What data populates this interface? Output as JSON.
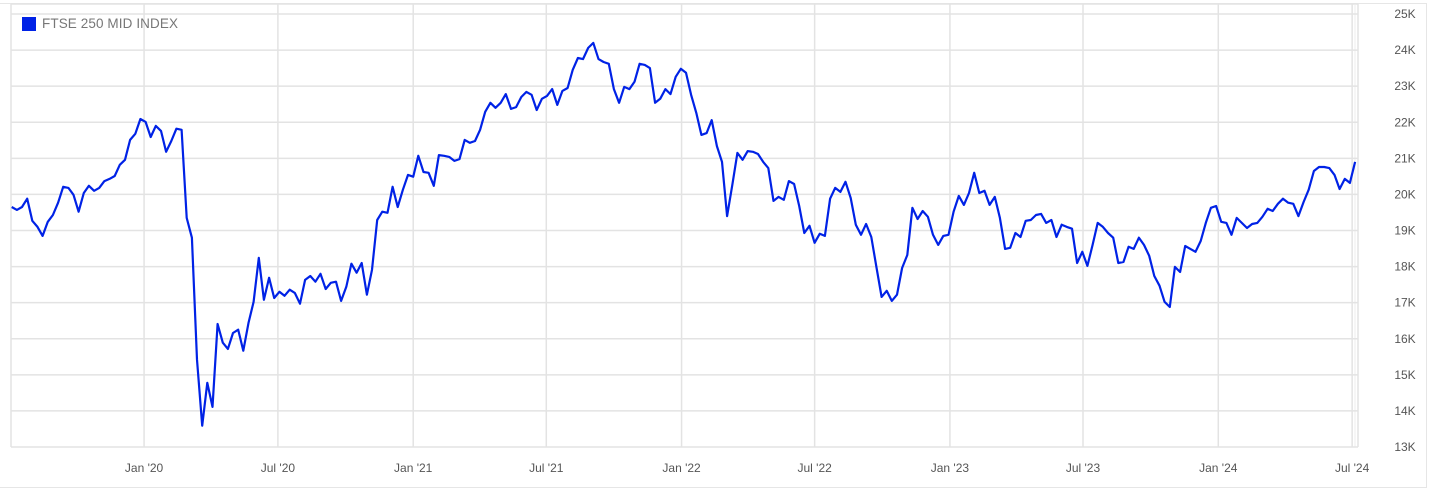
{
  "chart_data": {
    "type": "line",
    "title": "",
    "xlabel": "",
    "ylabel": "",
    "legend": {
      "placement": "top-left",
      "entries": [
        "FTSE 250 MID INDEX"
      ]
    },
    "grid": true,
    "ylim": [
      13000,
      25000
    ],
    "xlim": [
      "2019-07-04",
      "2024-07-09"
    ],
    "y_ticks": [
      {
        "value": 13000,
        "label": "13K"
      },
      {
        "value": 14000,
        "label": "14K"
      },
      {
        "value": 15000,
        "label": "15K"
      },
      {
        "value": 16000,
        "label": "16K"
      },
      {
        "value": 17000,
        "label": "17K"
      },
      {
        "value": 18000,
        "label": "18K"
      },
      {
        "value": 19000,
        "label": "19K"
      },
      {
        "value": 20000,
        "label": "20K"
      },
      {
        "value": 21000,
        "label": "21K"
      },
      {
        "value": 22000,
        "label": "22K"
      },
      {
        "value": 23000,
        "label": "23K"
      },
      {
        "value": 24000,
        "label": "24K"
      },
      {
        "value": 25000,
        "label": "25K"
      }
    ],
    "x_ticks": [
      {
        "date": "2020-01-01",
        "label": "Jan '20"
      },
      {
        "date": "2020-07-01",
        "label": "Jul '20"
      },
      {
        "date": "2021-01-01",
        "label": "Jan '21"
      },
      {
        "date": "2021-07-01",
        "label": "Jul '21"
      },
      {
        "date": "2022-01-01",
        "label": "Jan '22"
      },
      {
        "date": "2022-07-01",
        "label": "Jul '22"
      },
      {
        "date": "2023-01-01",
        "label": "Jan '23"
      },
      {
        "date": "2023-07-01",
        "label": "Jul '23"
      },
      {
        "date": "2024-01-01",
        "label": "Jan '24"
      },
      {
        "date": "2024-07-01",
        "label": "Jul '24"
      }
    ],
    "series": [
      {
        "name": "FTSE 250 MID INDEX",
        "color": "#0022e6",
        "x": [
          "2019-07-05",
          "2019-07-12",
          "2019-07-19",
          "2019-07-26",
          "2019-08-02",
          "2019-08-09",
          "2019-08-16",
          "2019-08-23",
          "2019-08-30",
          "2019-09-06",
          "2019-09-13",
          "2019-09-20",
          "2019-09-27",
          "2019-10-04",
          "2019-10-11",
          "2019-10-18",
          "2019-10-25",
          "2019-11-01",
          "2019-11-08",
          "2019-11-15",
          "2019-11-22",
          "2019-11-29",
          "2019-12-06",
          "2019-12-13",
          "2019-12-20",
          "2019-12-27",
          "2020-01-03",
          "2020-01-10",
          "2020-01-17",
          "2020-01-24",
          "2020-01-31",
          "2020-02-07",
          "2020-02-14",
          "2020-02-21",
          "2020-02-28",
          "2020-03-06",
          "2020-03-13",
          "2020-03-20",
          "2020-03-27",
          "2020-04-03",
          "2020-04-10",
          "2020-04-17",
          "2020-04-24",
          "2020-05-01",
          "2020-05-08",
          "2020-05-15",
          "2020-05-22",
          "2020-05-29",
          "2020-06-05",
          "2020-06-12",
          "2020-06-19",
          "2020-06-26",
          "2020-07-03",
          "2020-07-10",
          "2020-07-17",
          "2020-07-24",
          "2020-07-31",
          "2020-08-07",
          "2020-08-14",
          "2020-08-21",
          "2020-08-28",
          "2020-09-04",
          "2020-09-11",
          "2020-09-18",
          "2020-09-25",
          "2020-10-02",
          "2020-10-09",
          "2020-10-16",
          "2020-10-23",
          "2020-10-30",
          "2020-11-06",
          "2020-11-13",
          "2020-11-20",
          "2020-11-27",
          "2020-12-04",
          "2020-12-11",
          "2020-12-18",
          "2020-12-25",
          "2021-01-01",
          "2021-01-08",
          "2021-01-15",
          "2021-01-22",
          "2021-01-29",
          "2021-02-05",
          "2021-02-12",
          "2021-02-19",
          "2021-02-26",
          "2021-03-05",
          "2021-03-12",
          "2021-03-19",
          "2021-03-26",
          "2021-04-02",
          "2021-04-09",
          "2021-04-16",
          "2021-04-23",
          "2021-04-30",
          "2021-05-07",
          "2021-05-14",
          "2021-05-21",
          "2021-05-28",
          "2021-06-04",
          "2021-06-11",
          "2021-06-18",
          "2021-06-25",
          "2021-07-02",
          "2021-07-09",
          "2021-07-16",
          "2021-07-23",
          "2021-07-30",
          "2021-08-06",
          "2021-08-13",
          "2021-08-20",
          "2021-08-27",
          "2021-09-03",
          "2021-09-10",
          "2021-09-17",
          "2021-09-24",
          "2021-10-01",
          "2021-10-08",
          "2021-10-15",
          "2021-10-22",
          "2021-10-29",
          "2021-11-05",
          "2021-11-12",
          "2021-11-19",
          "2021-11-26",
          "2021-12-03",
          "2021-12-10",
          "2021-12-17",
          "2021-12-24",
          "2021-12-31",
          "2022-01-07",
          "2022-01-14",
          "2022-01-21",
          "2022-01-28",
          "2022-02-04",
          "2022-02-11",
          "2022-02-18",
          "2022-02-25",
          "2022-03-04",
          "2022-03-11",
          "2022-03-18",
          "2022-03-25",
          "2022-04-01",
          "2022-04-08",
          "2022-04-15",
          "2022-04-22",
          "2022-04-29",
          "2022-05-06",
          "2022-05-13",
          "2022-05-20",
          "2022-05-27",
          "2022-06-03",
          "2022-06-10",
          "2022-06-17",
          "2022-06-24",
          "2022-07-01",
          "2022-07-08",
          "2022-07-15",
          "2022-07-22",
          "2022-07-29",
          "2022-08-05",
          "2022-08-12",
          "2022-08-19",
          "2022-08-26",
          "2022-09-02",
          "2022-09-09",
          "2022-09-16",
          "2022-09-23",
          "2022-09-30",
          "2022-10-07",
          "2022-10-14",
          "2022-10-21",
          "2022-10-28",
          "2022-11-04",
          "2022-11-11",
          "2022-11-18",
          "2022-11-25",
          "2022-12-02",
          "2022-12-09",
          "2022-12-16",
          "2022-12-23",
          "2022-12-30",
          "2023-01-06",
          "2023-01-13",
          "2023-01-20",
          "2023-01-27",
          "2023-02-03",
          "2023-02-10",
          "2023-02-17",
          "2023-02-24",
          "2023-03-03",
          "2023-03-10",
          "2023-03-17",
          "2023-03-24",
          "2023-03-31",
          "2023-04-07",
          "2023-04-14",
          "2023-04-21",
          "2023-04-28",
          "2023-05-05",
          "2023-05-12",
          "2023-05-19",
          "2023-05-26",
          "2023-06-02",
          "2023-06-09",
          "2023-06-16",
          "2023-06-23",
          "2023-06-30",
          "2023-07-07",
          "2023-07-14",
          "2023-07-21",
          "2023-07-28",
          "2023-08-04",
          "2023-08-11",
          "2023-08-18",
          "2023-08-25",
          "2023-09-01",
          "2023-09-08",
          "2023-09-15",
          "2023-09-22",
          "2023-09-29",
          "2023-10-06",
          "2023-10-13",
          "2023-10-20",
          "2023-10-27",
          "2023-11-03",
          "2023-11-10",
          "2023-11-17",
          "2023-11-24",
          "2023-12-01",
          "2023-12-08",
          "2023-12-15",
          "2023-12-22",
          "2023-12-29",
          "2024-01-05",
          "2024-01-12",
          "2024-01-19",
          "2024-01-26",
          "2024-02-02",
          "2024-02-09",
          "2024-02-16",
          "2024-02-23",
          "2024-03-01",
          "2024-03-08",
          "2024-03-15",
          "2024-03-22",
          "2024-03-29",
          "2024-04-05",
          "2024-04-12",
          "2024-04-19",
          "2024-04-26",
          "2024-05-03",
          "2024-05-10",
          "2024-05-17",
          "2024-05-24",
          "2024-05-31",
          "2024-06-07",
          "2024-06-14",
          "2024-06-21",
          "2024-06-28",
          "2024-07-05"
        ],
        "y": [
          19650,
          19570,
          19650,
          19880,
          19270,
          19100,
          18850,
          19240,
          19430,
          19770,
          20210,
          20180,
          19990,
          19520,
          20040,
          20240,
          20100,
          20180,
          20370,
          20430,
          20510,
          20820,
          20960,
          21510,
          21680,
          22090,
          22010,
          21590,
          21900,
          21760,
          21180,
          21480,
          21820,
          21790,
          19350,
          18800,
          15420,
          13590,
          14780,
          14110,
          16410,
          15890,
          15720,
          16160,
          16250,
          15670,
          16440,
          17020,
          18240,
          17080,
          17690,
          17130,
          17300,
          17190,
          17360,
          17270,
          16970,
          17630,
          17740,
          17580,
          17800,
          17380,
          17550,
          17580,
          17050,
          17440,
          18080,
          17830,
          18100,
          17220,
          17910,
          19290,
          19520,
          19490,
          20210,
          19650,
          20130,
          20540,
          20490,
          21070,
          20620,
          20600,
          20240,
          21090,
          21070,
          21040,
          20930,
          20980,
          21510,
          21430,
          21480,
          21790,
          22290,
          22540,
          22400,
          22540,
          22780,
          22370,
          22420,
          22700,
          22840,
          22760,
          22340,
          22650,
          22730,
          22920,
          22480,
          22870,
          22950,
          23450,
          23780,
          23750,
          24060,
          24200,
          23750,
          23670,
          23620,
          22920,
          22540,
          22980,
          22920,
          23120,
          23620,
          23590,
          23500,
          22540,
          22650,
          22920,
          22780,
          23260,
          23480,
          23370,
          22760,
          22260,
          21650,
          21700,
          22060,
          21340,
          20900,
          19400,
          20260,
          21150,
          20960,
          21200,
          21180,
          21120,
          20900,
          20730,
          19820,
          19930,
          19850,
          20370,
          20290,
          19680,
          18930,
          19130,
          18660,
          18910,
          18850,
          19880,
          20180,
          20070,
          20350,
          19900,
          19160,
          18880,
          19180,
          18820,
          17990,
          17160,
          17330,
          17050,
          17220,
          17960,
          18320,
          19630,
          19320,
          19540,
          19380,
          18880,
          18600,
          18850,
          18880,
          19520,
          19960,
          19710,
          20040,
          20600,
          20040,
          20100,
          19710,
          19930,
          19350,
          18490,
          18520,
          18930,
          18820,
          19270,
          19290,
          19430,
          19460,
          19210,
          19290,
          18820,
          19160,
          19100,
          19050,
          18100,
          18410,
          18020,
          18600,
          19210,
          19100,
          18930,
          18800,
          18100,
          18130,
          18550,
          18490,
          18800,
          18600,
          18300,
          17740,
          17470,
          17020,
          16880,
          17990,
          17850,
          18570,
          18490,
          18410,
          18710,
          19210,
          19630,
          19680,
          19240,
          19210,
          18880,
          19350,
          19210,
          19070,
          19180,
          19210,
          19380,
          19600,
          19540,
          19740,
          19880,
          19770,
          19740,
          19400,
          19790,
          20130,
          20650,
          20760,
          20760,
          20730,
          20540,
          20150,
          20430,
          20320,
          20900
        ]
      }
    ]
  }
}
